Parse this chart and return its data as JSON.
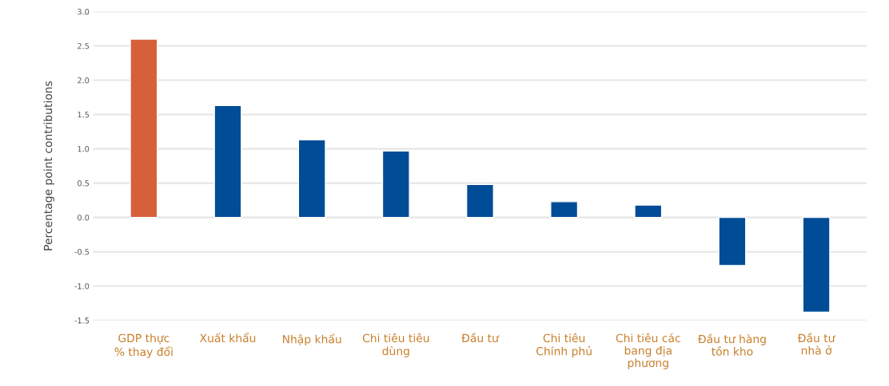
{
  "chart_data": {
    "type": "bar",
    "ylabel": "Percentage point contributions",
    "categories": [
      "GDP thực\n% thay đổi",
      "Xuất khẩu",
      "Nhập khẩu",
      "Chi tiêu tiêu\ndùng",
      "Đầu tư",
      "Chi tiêu\nChính phủ",
      "Chi tiêu các\nbang địa\nphương",
      "Đầu tư hàng\ntồn kho",
      "Đầu tư\nnhà ở"
    ],
    "values": [
      2.6,
      1.63,
      1.13,
      0.97,
      0.48,
      0.23,
      0.18,
      -0.7,
      -1.38
    ],
    "colors": [
      "#d6603a",
      "#004c97",
      "#004c97",
      "#004c97",
      "#004c97",
      "#004c97",
      "#004c97",
      "#004c97",
      "#004c97"
    ],
    "ylim": [
      -1.5,
      3.0
    ],
    "yticks": [
      {
        "value": -1.5,
        "label": "-1.5"
      },
      {
        "value": -1.0,
        "label": "-1.0"
      },
      {
        "value": -0.5,
        "label": "-0.5"
      },
      {
        "value": 0.0,
        "label": "0.0"
      },
      {
        "value": 0.5,
        "label": "0.5"
      },
      {
        "value": 1.0,
        "label": "1.0"
      },
      {
        "value": 1.5,
        "label": "1.5"
      },
      {
        "value": 2.0,
        "label": "2.0"
      },
      {
        "value": 2.5,
        "label": "2.5"
      },
      {
        "value": 3.0,
        "label": "3.0"
      }
    ],
    "grid": "y"
  }
}
